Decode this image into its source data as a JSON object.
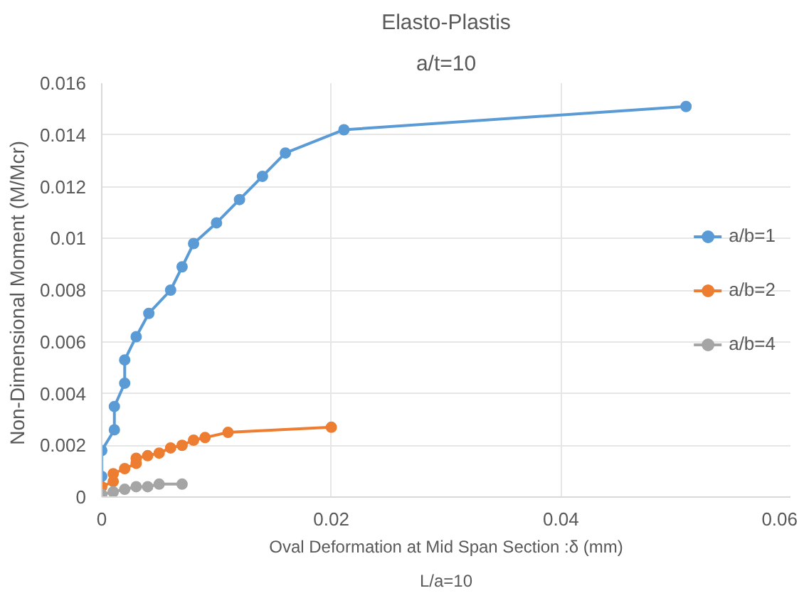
{
  "chart_data": {
    "type": "line",
    "title": "Elasto-Plastis",
    "subtitle": "a/t=10",
    "xlabel": "Oval Deformation at Mid Span Section :δ (mm)",
    "ylabel": "Non-Dimensional  Moment (M/Mcr)",
    "annotations": [
      "L/a=10"
    ],
    "xlim": [
      0,
      0.06
    ],
    "xticks": [
      0,
      0.02,
      0.04,
      0.06
    ],
    "ylim": [
      0,
      0.016
    ],
    "yticks": [
      0,
      0.002,
      0.004,
      0.006,
      0.008,
      0.01,
      0.012,
      0.014,
      0.016
    ],
    "grid": true,
    "legend": "right",
    "marker": "circle",
    "series": [
      {
        "name": "a/b=1",
        "color": "#5b9bd5",
        "x": [
          0,
          0,
          0.0011,
          0.0011,
          0.002,
          0.002,
          0.003,
          0.0041,
          0.006,
          0.007,
          0.008,
          0.01,
          0.012,
          0.014,
          0.016,
          0.0211,
          0.0509
        ],
        "values": [
          0.0008,
          0.0018,
          0.0026,
          0.0035,
          0.0044,
          0.0053,
          0.0062,
          0.0071,
          0.008,
          0.0089,
          0.0098,
          0.0106,
          0.0115,
          0.0124,
          0.0133,
          0.0142,
          0.0151
        ]
      },
      {
        "name": "a/b=2",
        "color": "#ed7d31",
        "x": [
          0,
          0.001,
          0.001,
          0.002,
          0.003,
          0.003,
          0.004,
          0.005,
          0.006,
          0.007,
          0.008,
          0.009,
          0.011,
          0.02
        ],
        "values": [
          0.0004,
          0.0006,
          0.0009,
          0.0011,
          0.0013,
          0.0015,
          0.0016,
          0.0017,
          0.0019,
          0.002,
          0.0022,
          0.0023,
          0.0025,
          0.0027
        ]
      },
      {
        "name": "a/b=4",
        "color": "#a5a5a5",
        "x": [
          0,
          0.001,
          0.002,
          0.003,
          0.004,
          0.005,
          0.007
        ],
        "values": [
          0.0001,
          0.0002,
          0.0003,
          0.0004,
          0.0004,
          0.0005,
          0.0005
        ]
      }
    ]
  }
}
